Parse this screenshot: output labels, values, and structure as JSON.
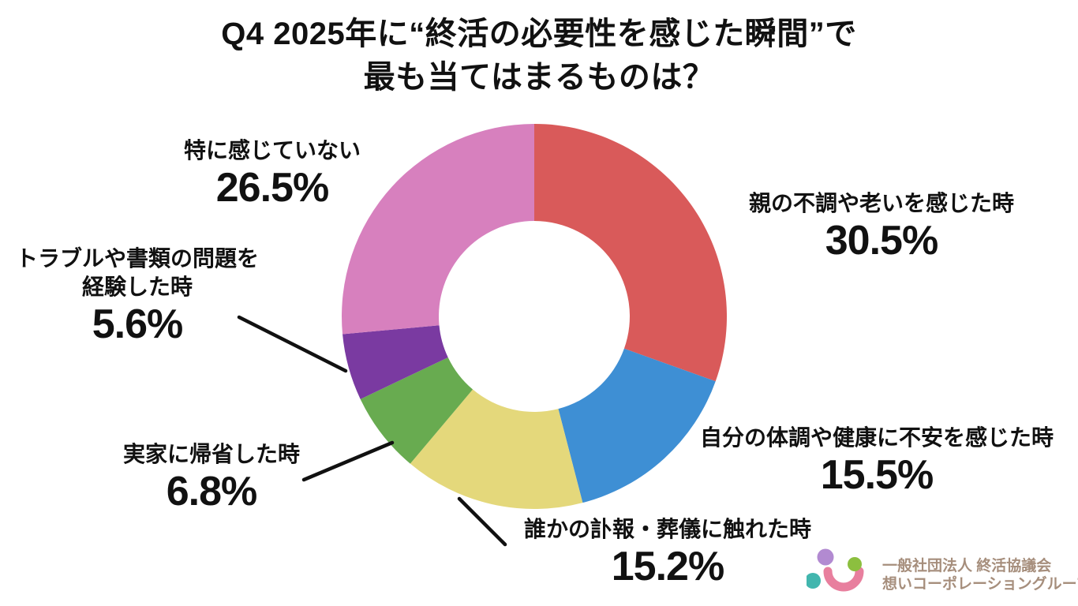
{
  "title": {
    "line1": "Q4 2025年に“終活の必要性を感じた瞬間”で",
    "line2": "最も当てはまるものは？"
  },
  "chart_data": {
    "type": "pie",
    "subtype": "donut",
    "title": "Q4 2025年に“終活の必要性を感じた瞬間”で最も当てはまるものは？",
    "unit": "%",
    "start_angle": "12-oclock",
    "direction": "clockwise",
    "inner_radius_ratio": 0.5,
    "segments": [
      {
        "label": "親の不調や老いを感じた時",
        "value": 30.5,
        "pct_label": "30.5%",
        "color": "#D95A5A"
      },
      {
        "label": "自分の体調や健康に不安を感じた時",
        "value": 15.5,
        "pct_label": "15.5%",
        "color": "#3E8FD4"
      },
      {
        "label": "誰かの訃報・葬儀に触れた時",
        "value": 15.2,
        "pct_label": "15.2%",
        "color": "#E4D87B"
      },
      {
        "label": "実家に帰省した時",
        "value": 6.8,
        "pct_label": "6.8%",
        "color": "#68AB50"
      },
      {
        "label": "トラブルや書類の問題を経験した時",
        "value": 5.6,
        "pct_label": "5.6%",
        "color": "#7A3AA1"
      },
      {
        "label": "特に感じていない",
        "value": 26.5,
        "pct_label": "26.5%",
        "color": "#D780BE"
      }
    ]
  },
  "logo": {
    "org_line1": "一般社団法人 終活協議会",
    "org_line2": "想いコーポレーショングループ",
    "text_color": "#A68E7C",
    "mark_colors": {
      "smile": "#E87F9E",
      "dot_purple": "#B28AD1",
      "dot_green": "#8CBF3F",
      "dot_teal": "#42B6AE"
    }
  }
}
